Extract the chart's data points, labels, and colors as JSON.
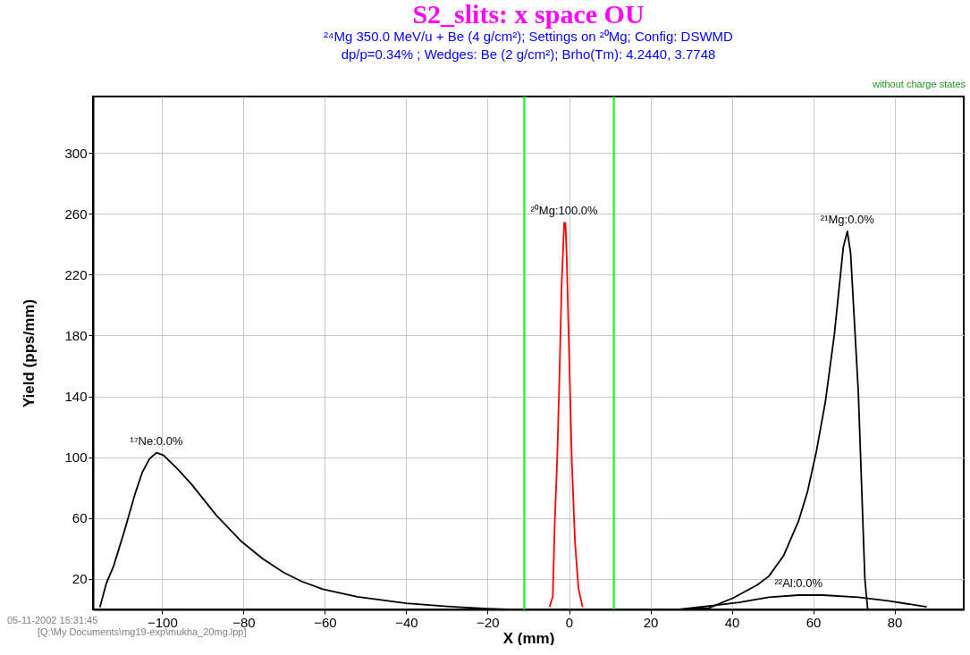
{
  "chart_data": {
    "type": "line",
    "title": "S2_slits:  x space OU",
    "subtitle": [
      "²⁴Mg 350.0 MeV/u + Be (4 g/cm²);  Settings on ²⁰Mg;  Config: DSWMD",
      "dp/p=0.34% ; Wedges: Be (2 g/cm²); Brho(Tm): 4.2440, 3.7748"
    ],
    "xlabel": "X (mm)",
    "ylabel": "Yield (pps/mm)",
    "xlim": [
      -117,
      97
    ],
    "ylim": [
      0,
      337
    ],
    "xticks": [
      -100,
      -80,
      -60,
      -40,
      -20,
      0,
      20,
      40,
      60,
      80
    ],
    "yticks": [
      20,
      60,
      100,
      140,
      180,
      220,
      260,
      300
    ],
    "grid": true,
    "series": [
      {
        "name": "¹⁷Ne:0.0%",
        "color": "#000000",
        "x": [
          -115.3,
          -113.7,
          -111.9,
          -109.3,
          -106.6,
          -104.9,
          -103.1,
          -101.4,
          -99.7,
          -96.2,
          -92.7,
          -86.6,
          -80.5,
          -75.3,
          -70.1,
          -65.8,
          -60.5,
          -52,
          -40,
          -30,
          -20,
          -15
        ],
        "values": [
          1.4,
          17.3,
          28.7,
          51.4,
          76.4,
          90,
          99,
          103,
          101.4,
          92.3,
          82,
          61.6,
          44.6,
          33.3,
          24.2,
          18.5,
          13.3,
          8.3,
          4,
          2,
          0.5,
          0
        ]
      },
      {
        "name": "²⁰Mg:100.0%",
        "color": "#ff0000",
        "x": [
          -4.8,
          -4.0,
          -3.5,
          -2.9,
          -2.35,
          -1.8,
          -1.5,
          -1.2,
          -0.9,
          -0.6,
          0.15,
          0.7,
          1.45,
          2.3,
          3.3
        ],
        "values": [
          1.7,
          8.4,
          58,
          100,
          154,
          215,
          234,
          254,
          254,
          234,
          154,
          96,
          45,
          14,
          1.7
        ]
      },
      {
        "name": "²¹Mg:0.0%",
        "color": "#000000",
        "x": [
          27.1,
          34.4,
          40.3,
          46.2,
          49.1,
          52.7,
          56.4,
          58.6,
          60.8,
          63,
          65.2,
          67.4,
          68.4,
          69.2,
          71.1,
          72.7,
          73.4
        ],
        "values": [
          0,
          1,
          7.5,
          16,
          21.8,
          35.2,
          58,
          77.3,
          104,
          136.6,
          180.6,
          238,
          248.4,
          234,
          142.3,
          20,
          0
        ]
      },
      {
        "name": "²²Al:0.0%",
        "color": "#000000",
        "x": [
          27.1,
          35.9,
          41.8,
          49.1,
          56.4,
          62.3,
          71.1,
          78.4,
          87.9
        ],
        "values": [
          0,
          2.7,
          4.6,
          8,
          9.4,
          9.4,
          8,
          5.6,
          1.7
        ]
      }
    ],
    "ref_lines": [
      {
        "axis": "x",
        "value": -11,
        "color": "#00ff00"
      },
      {
        "axis": "x",
        "value": 11,
        "color": "#00ff00"
      }
    ],
    "annotations": [
      "without charge states",
      "05-11-2002  15:31:45",
      "[Q:\\My Documents\\mg19-exp\\mukha_20mg.lpp]"
    ]
  }
}
